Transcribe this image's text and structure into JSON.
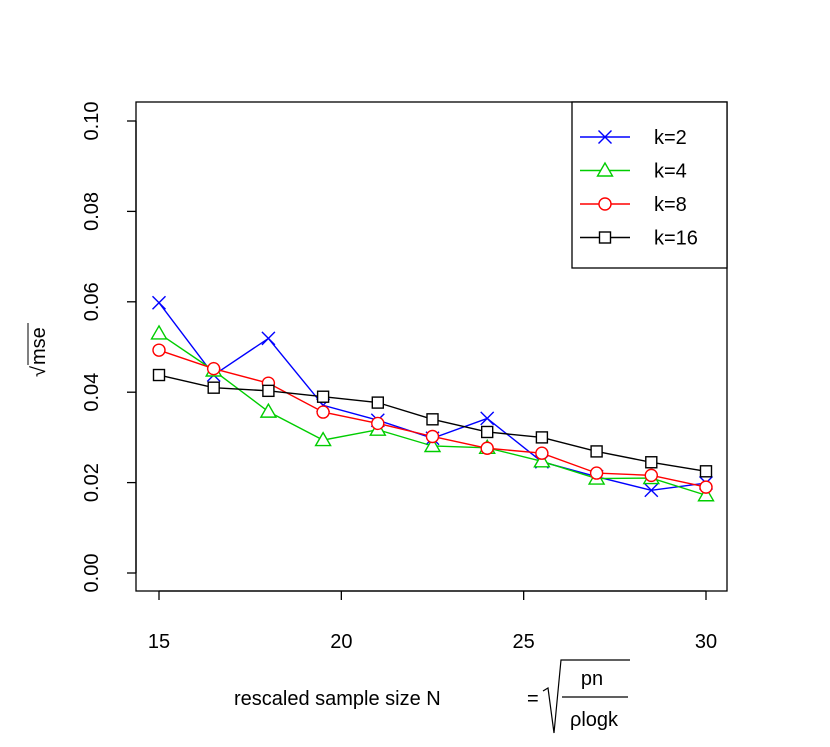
{
  "chart_data": {
    "type": "line",
    "title": "",
    "xlabel": "rescaled sample size N = √(pn / ρlogk)",
    "xlabel_parts": {
      "text": "rescaled sample size N",
      "eq": "=",
      "num": "pn",
      "den": "ρlogk"
    },
    "ylabel": "√mse",
    "ylabel_parts": {
      "radical": "√",
      "text": "mse"
    },
    "xlim": [
      15,
      30
    ],
    "ylim": [
      0,
      0.1
    ],
    "x_ticks": [
      15,
      20,
      25,
      30
    ],
    "x_tick_labels": [
      "15",
      "20",
      "25",
      "30"
    ],
    "y_ticks": [
      0,
      0.02,
      0.04,
      0.06,
      0.08,
      0.1
    ],
    "y_tick_labels": [
      "0.00",
      "0.02",
      "0.04",
      "0.06",
      "0.08",
      "0.10"
    ],
    "grid": false,
    "legend_position": "top-right",
    "x": [
      15,
      16.5,
      18,
      19.5,
      21,
      22.5,
      24,
      25.5,
      27,
      28.5,
      30
    ],
    "series": [
      {
        "name": "k=2",
        "color": "#0000ff",
        "marker": "cross",
        "values": [
          0.0598,
          0.0438,
          0.0519,
          0.0371,
          0.0338,
          0.0298,
          0.0342,
          0.0246,
          0.0213,
          0.0183,
          0.0199
        ]
      },
      {
        "name": "k=4",
        "color": "#00cd00",
        "marker": "triangle",
        "values": [
          0.053,
          0.0448,
          0.0357,
          0.0294,
          0.0317,
          0.0281,
          0.0277,
          0.0247,
          0.0209,
          0.021,
          0.0172
        ]
      },
      {
        "name": "k=8",
        "color": "#ff0000",
        "marker": "circle",
        "values": [
          0.0493,
          0.0452,
          0.042,
          0.0356,
          0.0331,
          0.0302,
          0.0276,
          0.0265,
          0.0221,
          0.0216,
          0.019
        ]
      },
      {
        "name": "k=16",
        "color": "#000000",
        "marker": "square",
        "values": [
          0.0438,
          0.041,
          0.0403,
          0.039,
          0.0377,
          0.034,
          0.0312,
          0.03,
          0.0269,
          0.0245,
          0.0225
        ]
      }
    ]
  }
}
